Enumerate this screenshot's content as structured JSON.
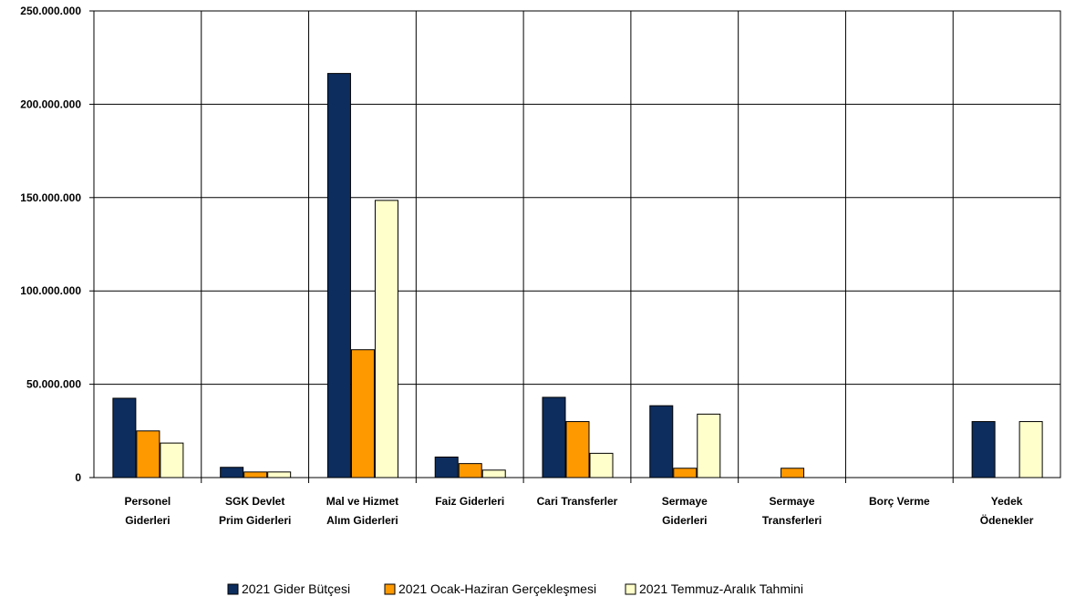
{
  "chart_data": {
    "type": "bar",
    "title": "",
    "xlabel": "",
    "ylabel": "",
    "ylim": [
      0,
      250000000
    ],
    "yticks": [
      {
        "value": 0,
        "label": "0"
      },
      {
        "value": 50000000,
        "label": "50.000.000"
      },
      {
        "value": 100000000,
        "label": "100.000.000"
      },
      {
        "value": 150000000,
        "label": "150.000.000"
      },
      {
        "value": 200000000,
        "label": "200.000.000"
      },
      {
        "value": 250000000,
        "label": "250.000.000"
      }
    ],
    "grid": true,
    "legend_position": "bottom",
    "categories": [
      [
        "Personel",
        "Giderleri"
      ],
      [
        "SGK Devlet",
        "Prim Giderleri"
      ],
      [
        "Mal ve Hizmet",
        "Alım Giderleri"
      ],
      [
        "Faiz Giderleri"
      ],
      [
        "Cari Transferler"
      ],
      [
        "Sermaye",
        "Giderleri"
      ],
      [
        "Sermaye",
        "Transferleri"
      ],
      [
        "Borç Verme"
      ],
      [
        "Yedek",
        "Ödenekler"
      ]
    ],
    "series": [
      {
        "name": "2021 Gider Bütçesi",
        "color": "#0d2d5e",
        "values": [
          42500000,
          5500000,
          216500000,
          11000000,
          43000000,
          38500000,
          0,
          0,
          30000000
        ]
      },
      {
        "name": "2021 Ocak-Haziran Gerçekleşmesi",
        "color": "#ff9900",
        "values": [
          25000000,
          3000000,
          68500000,
          7500000,
          30000000,
          5000000,
          5000000,
          0,
          0
        ]
      },
      {
        "name": "2021 Temmuz-Aralık Tahmini",
        "color": "#ffffcc",
        "values": [
          18500000,
          3000000,
          148500000,
          4000000,
          13000000,
          34000000,
          0,
          0,
          30000000
        ]
      }
    ]
  }
}
